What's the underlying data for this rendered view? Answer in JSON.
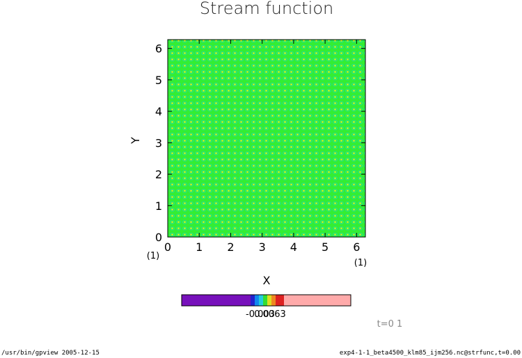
{
  "chart_data": {
    "type": "contour",
    "title": "Stream function",
    "x_label": "X",
    "y_label": "Y",
    "x_unit": "(1)",
    "y_unit": "(1)",
    "xlim": [
      0,
      6.28
    ],
    "ylim": [
      0,
      6.28
    ],
    "xticks": [
      0,
      1,
      2,
      3,
      4,
      5,
      6
    ],
    "yticks": [
      0,
      1,
      2,
      3,
      4,
      5,
      6
    ],
    "colorbar_labels": [
      "-0.003",
      "0.0063"
    ],
    "time_label": "t=0 1",
    "footer_left": "/usr/bin/gpview  2005-12-15",
    "footer_right": "exp4-1-1_beta4500_klm85_ijm256.nc@strfunc,t=0.00"
  }
}
